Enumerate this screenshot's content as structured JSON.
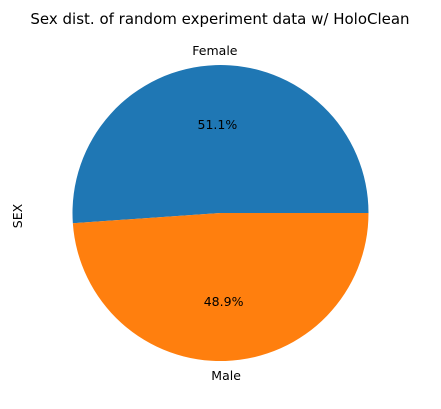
{
  "chart_data": {
    "type": "pie",
    "title": "Sex dist. of random experiment data w/ HoloClean",
    "ylabel": "SEX",
    "categories": [
      "Female",
      "Male"
    ],
    "values": [
      51.1,
      48.9
    ],
    "percent_labels": [
      "51.1%",
      "48.9%"
    ],
    "colors": [
      "#1f77b4",
      "#ff7f0e"
    ],
    "start_angle_deg": 0,
    "direction": "counterclockwise"
  }
}
